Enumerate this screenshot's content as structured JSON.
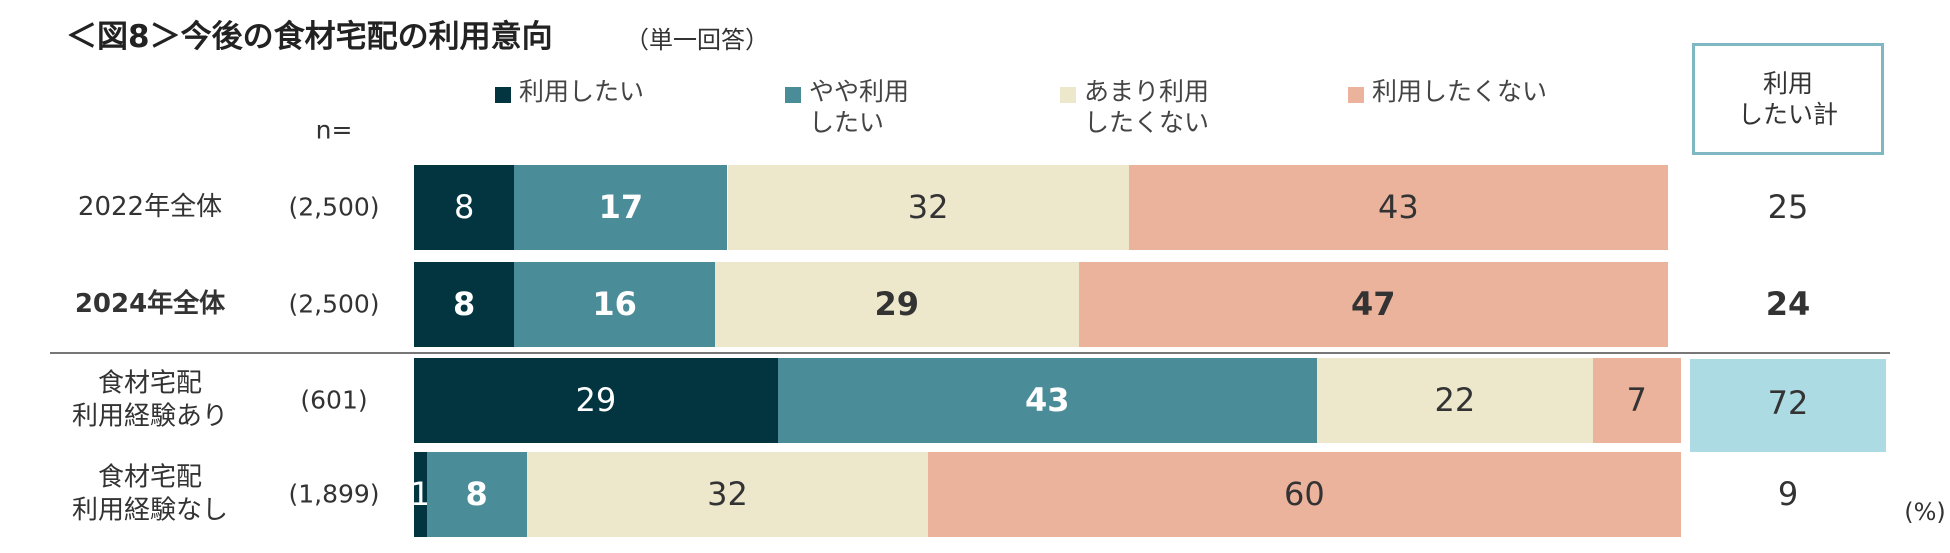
{
  "chart_data": {
    "type": "stacked-bar-100",
    "title": "＜図8＞今後の食材宅配の利用意向",
    "subtitle": "（単一回答）",
    "n_header": "n=",
    "categories": [
      "2022年全体",
      "2024年全体",
      "食材宅配\n利用経験あり",
      "食材宅配\n利用経験なし"
    ],
    "n_labels": [
      "(2,500)",
      "(2,500)",
      "(601)",
      "(1,899)"
    ],
    "bold_row": 1,
    "separator_after_row": 1,
    "xlim": [
      0,
      100
    ],
    "series": [
      {
        "name": "利用したい",
        "color": "#023540",
        "label_color": "#ffffff",
        "bold_labels": false,
        "values": [
          8,
          8,
          29,
          1
        ]
      },
      {
        "name": "やや利用\nしたい",
        "color": "#4a8c98",
        "label_color": "#ffffff",
        "bold_labels": true,
        "values": [
          17,
          16,
          43,
          8
        ]
      },
      {
        "name": "あまり利用\nしたくない",
        "color": "#ede7cb",
        "label_color": "#333333",
        "bold_labels": false,
        "values": [
          32,
          29,
          22,
          32
        ]
      },
      {
        "name": "利用したくない",
        "color": "#ebb39b",
        "label_color": "#333333",
        "bold_labels": false,
        "values": [
          43,
          47,
          7,
          60
        ]
      }
    ],
    "total_header": "利用\nしたい計",
    "totals": [
      25,
      24,
      72,
      9
    ],
    "highlight_total": 2,
    "highlight_color": "#acdbe3",
    "unit": "(%)"
  }
}
